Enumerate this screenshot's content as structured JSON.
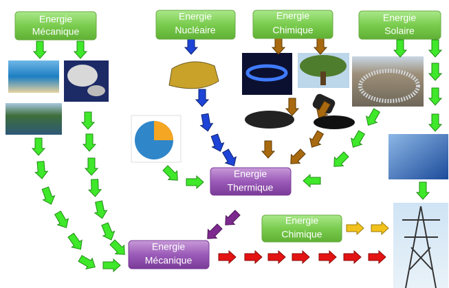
{
  "nodes": [
    {
      "lines": [
        "Energie",
        "Mécanique"
      ]
    },
    {
      "lines": [
        "Energie",
        "Nucléaire"
      ]
    },
    {
      "lines": [
        "Energie",
        "Chimique"
      ]
    },
    {
      "lines": [
        "Energie",
        "Solaire"
      ]
    },
    {
      "lines": [
        "Energie",
        "Thermique"
      ]
    },
    {
      "lines": [
        "Energie",
        "Mécanique"
      ]
    },
    {
      "lines": [
        "Energie",
        "Chimique"
      ]
    }
  ]
}
